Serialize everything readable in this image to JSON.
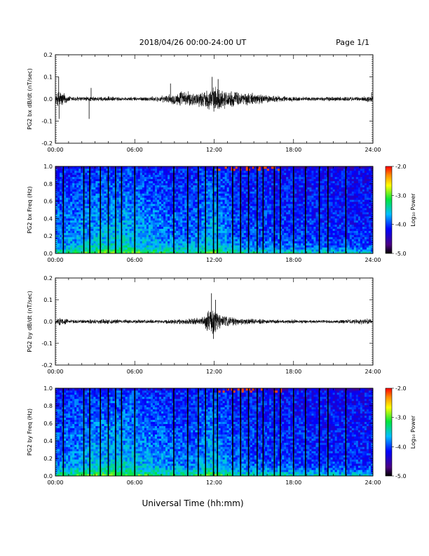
{
  "header": {
    "title": "2018/04/26  00:00-24:00 UT",
    "page": "Page 1/1"
  },
  "xaxis_label": "Universal Time (hh:mm)",
  "colors": {
    "trace": "#000000",
    "colorbar": [
      "#000000",
      "#4b0082",
      "#0000ff",
      "#00bfff",
      "#00ff00",
      "#ffff00",
      "#ff8c00",
      "#ff0000"
    ]
  },
  "chart_data": [
    {
      "type": "line",
      "ylabel": "PG2 bx dB/dt (nT/sec)",
      "xlim": [
        0,
        24
      ],
      "ylim": [
        -0.2,
        0.2
      ],
      "yticks": [
        "0.2",
        "0.1",
        "0.0",
        "-0.1",
        "-0.2"
      ],
      "xticks": [
        "00:00",
        "06:00",
        "12:00",
        "18:00",
        "24:00"
      ],
      "envelope": {
        "hours": [
          0,
          0.3,
          1,
          2,
          3,
          4,
          5,
          6,
          7,
          8,
          8.8,
          9.5,
          10.5,
          11.2,
          11.8,
          12.2,
          12.6,
          13.2,
          14,
          15,
          16,
          17,
          18,
          19,
          20,
          21,
          22,
          23,
          24
        ],
        "amplitude": [
          0.02,
          0.05,
          0.015,
          0.012,
          0.012,
          0.012,
          0.01,
          0.01,
          0.012,
          0.015,
          0.025,
          0.04,
          0.035,
          0.04,
          0.06,
          0.06,
          0.05,
          0.04,
          0.035,
          0.03,
          0.02,
          0.015,
          0.012,
          0.01,
          0.01,
          0.012,
          0.012,
          0.01,
          0.02
        ]
      },
      "spikes": [
        {
          "hour": 0.25,
          "value": 0.1
        },
        {
          "hour": 0.28,
          "value": -0.09
        },
        {
          "hour": 2.55,
          "value": -0.09
        },
        {
          "hour": 2.7,
          "value": 0.05
        },
        {
          "hour": 8.7,
          "value": 0.07
        },
        {
          "hour": 11.85,
          "value": 0.1
        },
        {
          "hour": 12.3,
          "value": 0.09
        },
        {
          "hour": 23.9,
          "value": 0.03
        }
      ]
    },
    {
      "type": "heatmap",
      "ylabel": "PG2 bx Freq (Hz)",
      "xlim": [
        0,
        24
      ],
      "ylim": [
        0,
        1
      ],
      "yticks": [
        "1.0",
        "0.8",
        "0.6",
        "0.4",
        "0.2",
        "0.0"
      ],
      "xticks": [
        "00:00",
        "06:00",
        "12:00",
        "18:00",
        "24:00"
      ],
      "colorbar": {
        "label": "Log₁₀ Power",
        "ticks": [
          "-2.0",
          "-3.0",
          "-4.0",
          "-5.0"
        ],
        "range": [
          -5,
          -2
        ]
      },
      "gap_hours": [
        0.6,
        2.15,
        2.6,
        3.4,
        4.0,
        4.55,
        5.0,
        6.0,
        8.95,
        10.0,
        10.8,
        11.35,
        11.95,
        12.25,
        13.4,
        14.0,
        14.6,
        15.25,
        15.7,
        16.55,
        17.0,
        18.0,
        18.9,
        19.95,
        20.6,
        21.95
      ]
    },
    {
      "type": "line",
      "ylabel": "PG2 by dB/dt (nT/sec)",
      "xlim": [
        0,
        24
      ],
      "ylim": [
        -0.2,
        0.2
      ],
      "yticks": [
        "0.2",
        "0.1",
        "0.0",
        "-0.1",
        "-0.2"
      ],
      "xticks": [
        "00:00",
        "06:00",
        "12:00",
        "18:00",
        "24:00"
      ],
      "envelope": {
        "hours": [
          0,
          0.4,
          1,
          2,
          3,
          4,
          5,
          6,
          7,
          8,
          9,
          10,
          10.8,
          11.3,
          11.6,
          11.9,
          12.3,
          12.8,
          13.5,
          14.5,
          16,
          18,
          20,
          22,
          23.5,
          24
        ],
        "amplitude": [
          0.015,
          0.02,
          0.01,
          0.01,
          0.012,
          0.012,
          0.01,
          0.01,
          0.01,
          0.01,
          0.012,
          0.015,
          0.02,
          0.03,
          0.06,
          0.08,
          0.05,
          0.03,
          0.02,
          0.015,
          0.01,
          0.01,
          0.008,
          0.01,
          0.015,
          0.01
        ]
      },
      "spikes": [
        {
          "hour": 11.8,
          "value": 0.13
        },
        {
          "hour": 11.95,
          "value": -0.08
        },
        {
          "hour": 12.1,
          "value": 0.1
        }
      ]
    },
    {
      "type": "heatmap",
      "ylabel": "PG2 by Freq (Hz)",
      "xlim": [
        0,
        24
      ],
      "ylim": [
        0,
        1
      ],
      "yticks": [
        "1.0",
        "0.8",
        "0.6",
        "0.4",
        "0.2",
        "0.0"
      ],
      "xticks": [
        "00:00",
        "06:00",
        "12:00",
        "18:00",
        "24:00"
      ],
      "colorbar": {
        "label": "Log₁₀ Power",
        "ticks": [
          "-2.0",
          "-3.0",
          "-4.0",
          "-5.0"
        ],
        "range": [
          -5,
          -2
        ]
      },
      "gap_hours": [
        0.6,
        2.15,
        2.6,
        3.4,
        4.0,
        4.55,
        5.0,
        6.0,
        8.95,
        10.0,
        10.8,
        11.35,
        11.95,
        12.25,
        13.4,
        14.0,
        14.6,
        15.25,
        15.7,
        16.55,
        17.0,
        18.0,
        18.9,
        19.95,
        20.6,
        21.95
      ]
    }
  ]
}
